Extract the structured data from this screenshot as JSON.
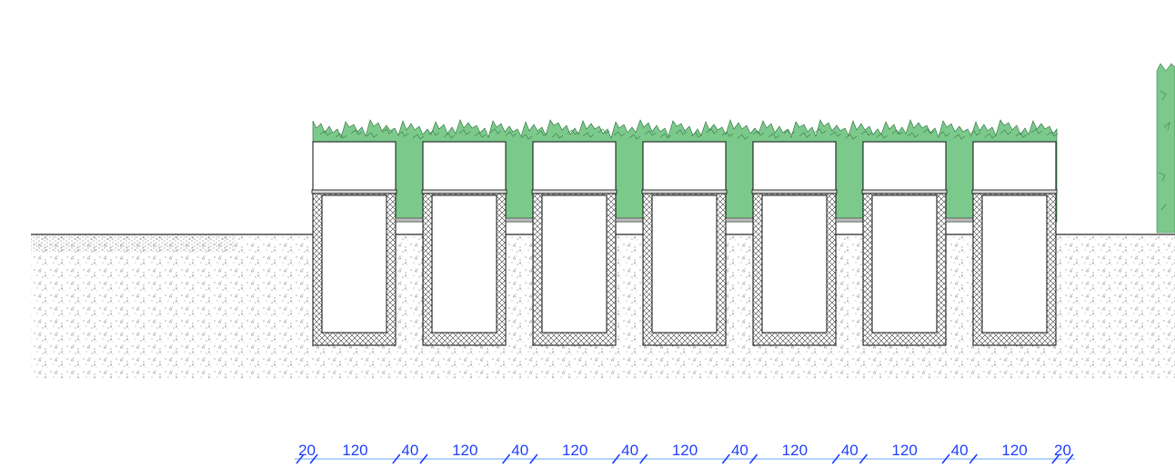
{
  "colors": {
    "background": "#ffffff",
    "hedge": "#7cc98c",
    "hedge_stroke": "#3a7d4a",
    "planter_outline": "#111111",
    "soil_dots": "#777777",
    "dimension": "#1f3fff"
  },
  "drawing": {
    "planter_count": 7,
    "planter_labels": [
      "planter-1",
      "planter-2",
      "planter-3",
      "planter-4",
      "planter-5",
      "planter-6",
      "planter-7"
    ]
  },
  "dimensions": {
    "segments": [
      "20",
      "120",
      "40",
      "120",
      "40",
      "120",
      "40",
      "120",
      "40",
      "120",
      "40",
      "120",
      "40",
      "120",
      "20"
    ]
  }
}
